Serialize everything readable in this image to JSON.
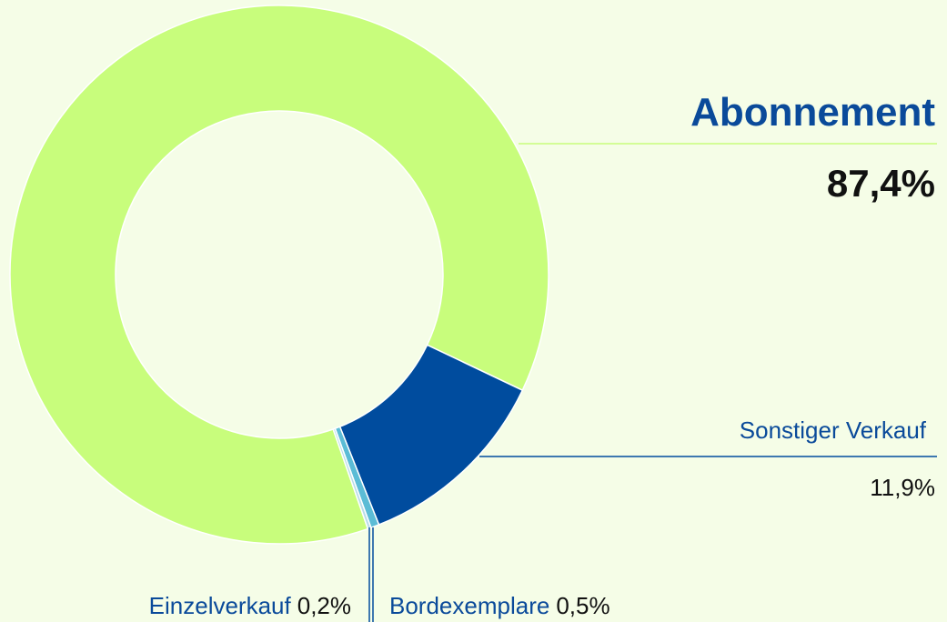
{
  "chart_data": {
    "type": "pie",
    "donut": true,
    "categories": [
      "Abonnement",
      "Sonstiger Verkauf",
      "Bordexemplare",
      "Einzelverkauf"
    ],
    "values": [
      87.4,
      11.9,
      0.5,
      0.2
    ],
    "value_labels": [
      "87,4%",
      "11,9%",
      "0,5%",
      "0,2%"
    ],
    "colors": [
      "#c8fd7c",
      "#004c9e",
      "#5bbcd6",
      "#b9dcea"
    ]
  }
}
